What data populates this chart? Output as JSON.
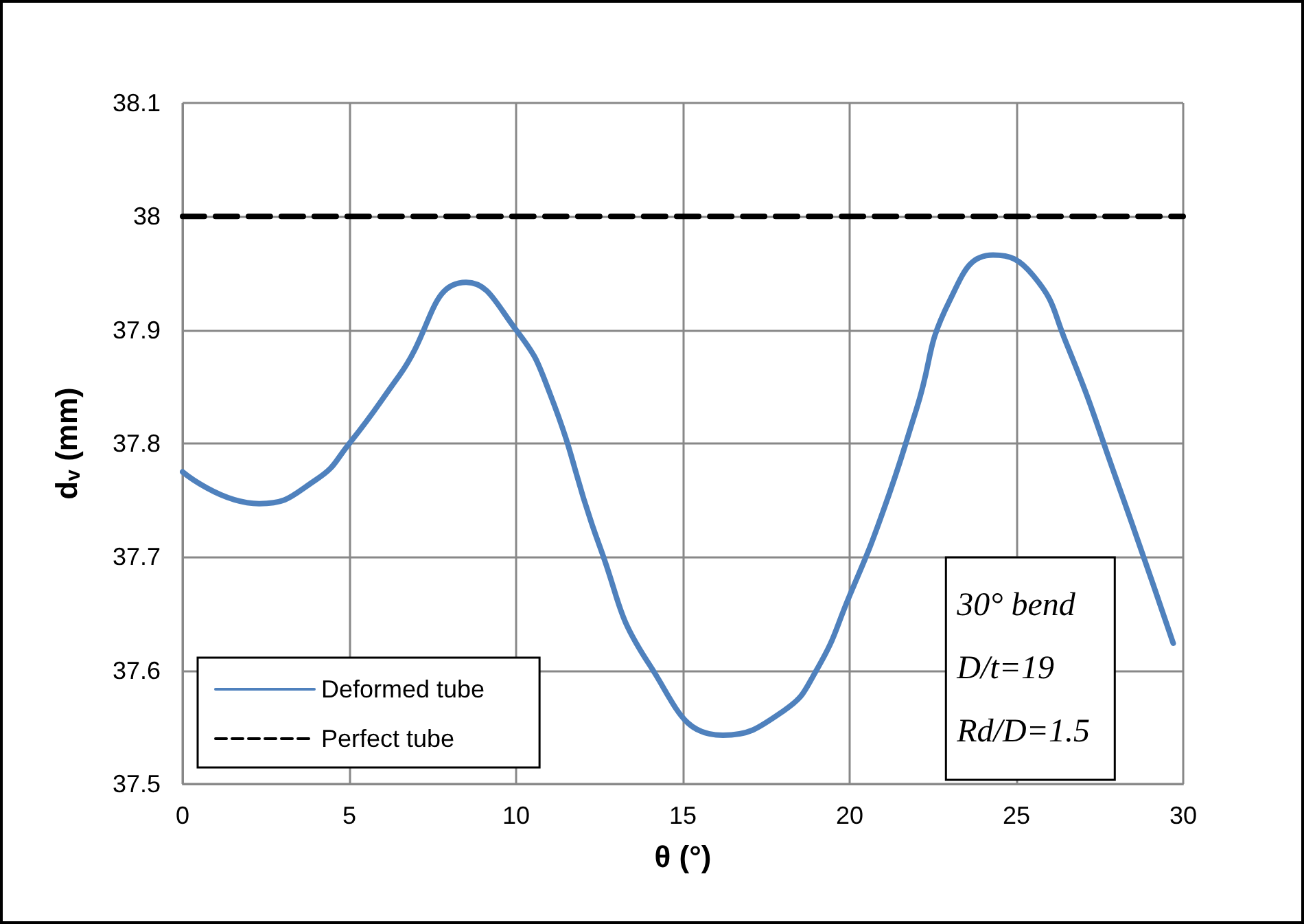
{
  "chart_data": {
    "type": "line",
    "xlabel": "θ (°)",
    "ylabel": "d$_{v}$ (mm)",
    "xlim": [
      0,
      30
    ],
    "xticks": [
      0,
      5,
      10,
      15,
      20,
      25,
      30
    ],
    "ylim": [
      37.5,
      38.1
    ],
    "yticks": [
      37.5,
      37.6,
      37.7,
      37.8,
      37.9,
      38,
      38.1
    ],
    "grid": true,
    "legend": "bottom left",
    "marker": "none",
    "annotations": [
      "30° bend",
      "D/t=19",
      "Rd/D=1.5"
    ],
    "series": [
      {
        "name": "Deformed tube",
        "color": "#4f81bd",
        "line_style": "solid",
        "x": [
          0,
          2.3,
          4,
          5,
          6.5,
          8.5,
          10,
          11,
          12.5,
          14,
          16.2,
          18,
          19,
          20,
          21,
          22,
          23,
          24.3,
          25.5,
          26.5,
          28,
          29.7
        ],
        "values": [
          37.775,
          37.747,
          37.768,
          37.8,
          37.86,
          37.942,
          37.9,
          37.845,
          37.71,
          37.605,
          37.543,
          37.564,
          37.6,
          37.666,
          37.74,
          37.83,
          37.926,
          37.966,
          37.948,
          37.888,
          37.768,
          37.624
        ]
      },
      {
        "name": "Perfect tube",
        "color": "#000000",
        "line_style": "dashed",
        "x": [
          0,
          30
        ],
        "values": [
          38,
          38
        ]
      }
    ]
  }
}
